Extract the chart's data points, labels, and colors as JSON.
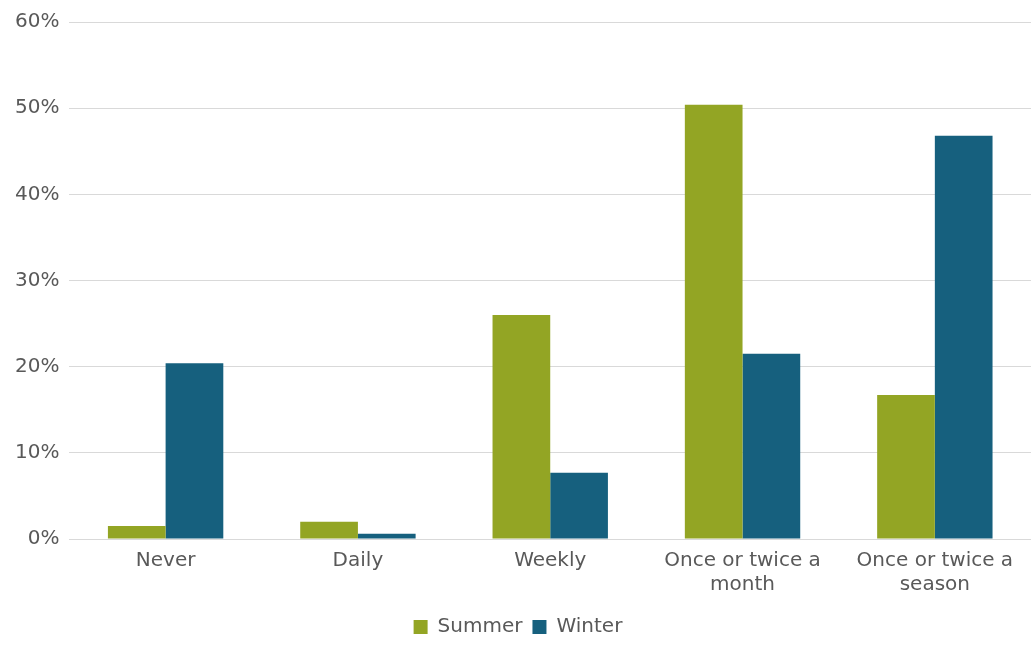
{
  "chart_data": {
    "type": "bar",
    "categories": [
      "Never",
      "Daily",
      "Weekly",
      "Once or twice a month",
      "Once or twice a season"
    ],
    "series": [
      {
        "name": "Summer",
        "color": "#93a524",
        "values": [
          1.5,
          2.0,
          26.0,
          50.4,
          16.7
        ]
      },
      {
        "name": "Winter",
        "color": "#16607e",
        "values": [
          20.4,
          0.6,
          7.7,
          21.5,
          46.8
        ]
      }
    ],
    "ylim": [
      0,
      60
    ],
    "yticks": [
      {
        "value": 0,
        "label": "0%"
      },
      {
        "value": 10,
        "label": "10%"
      },
      {
        "value": 20,
        "label": "20%"
      },
      {
        "value": 30,
        "label": "30%"
      },
      {
        "value": 40,
        "label": "40%"
      },
      {
        "value": 50,
        "label": "50%"
      },
      {
        "value": 60,
        "label": "60%"
      }
    ],
    "grid": "y",
    "legend": "bottom"
  }
}
